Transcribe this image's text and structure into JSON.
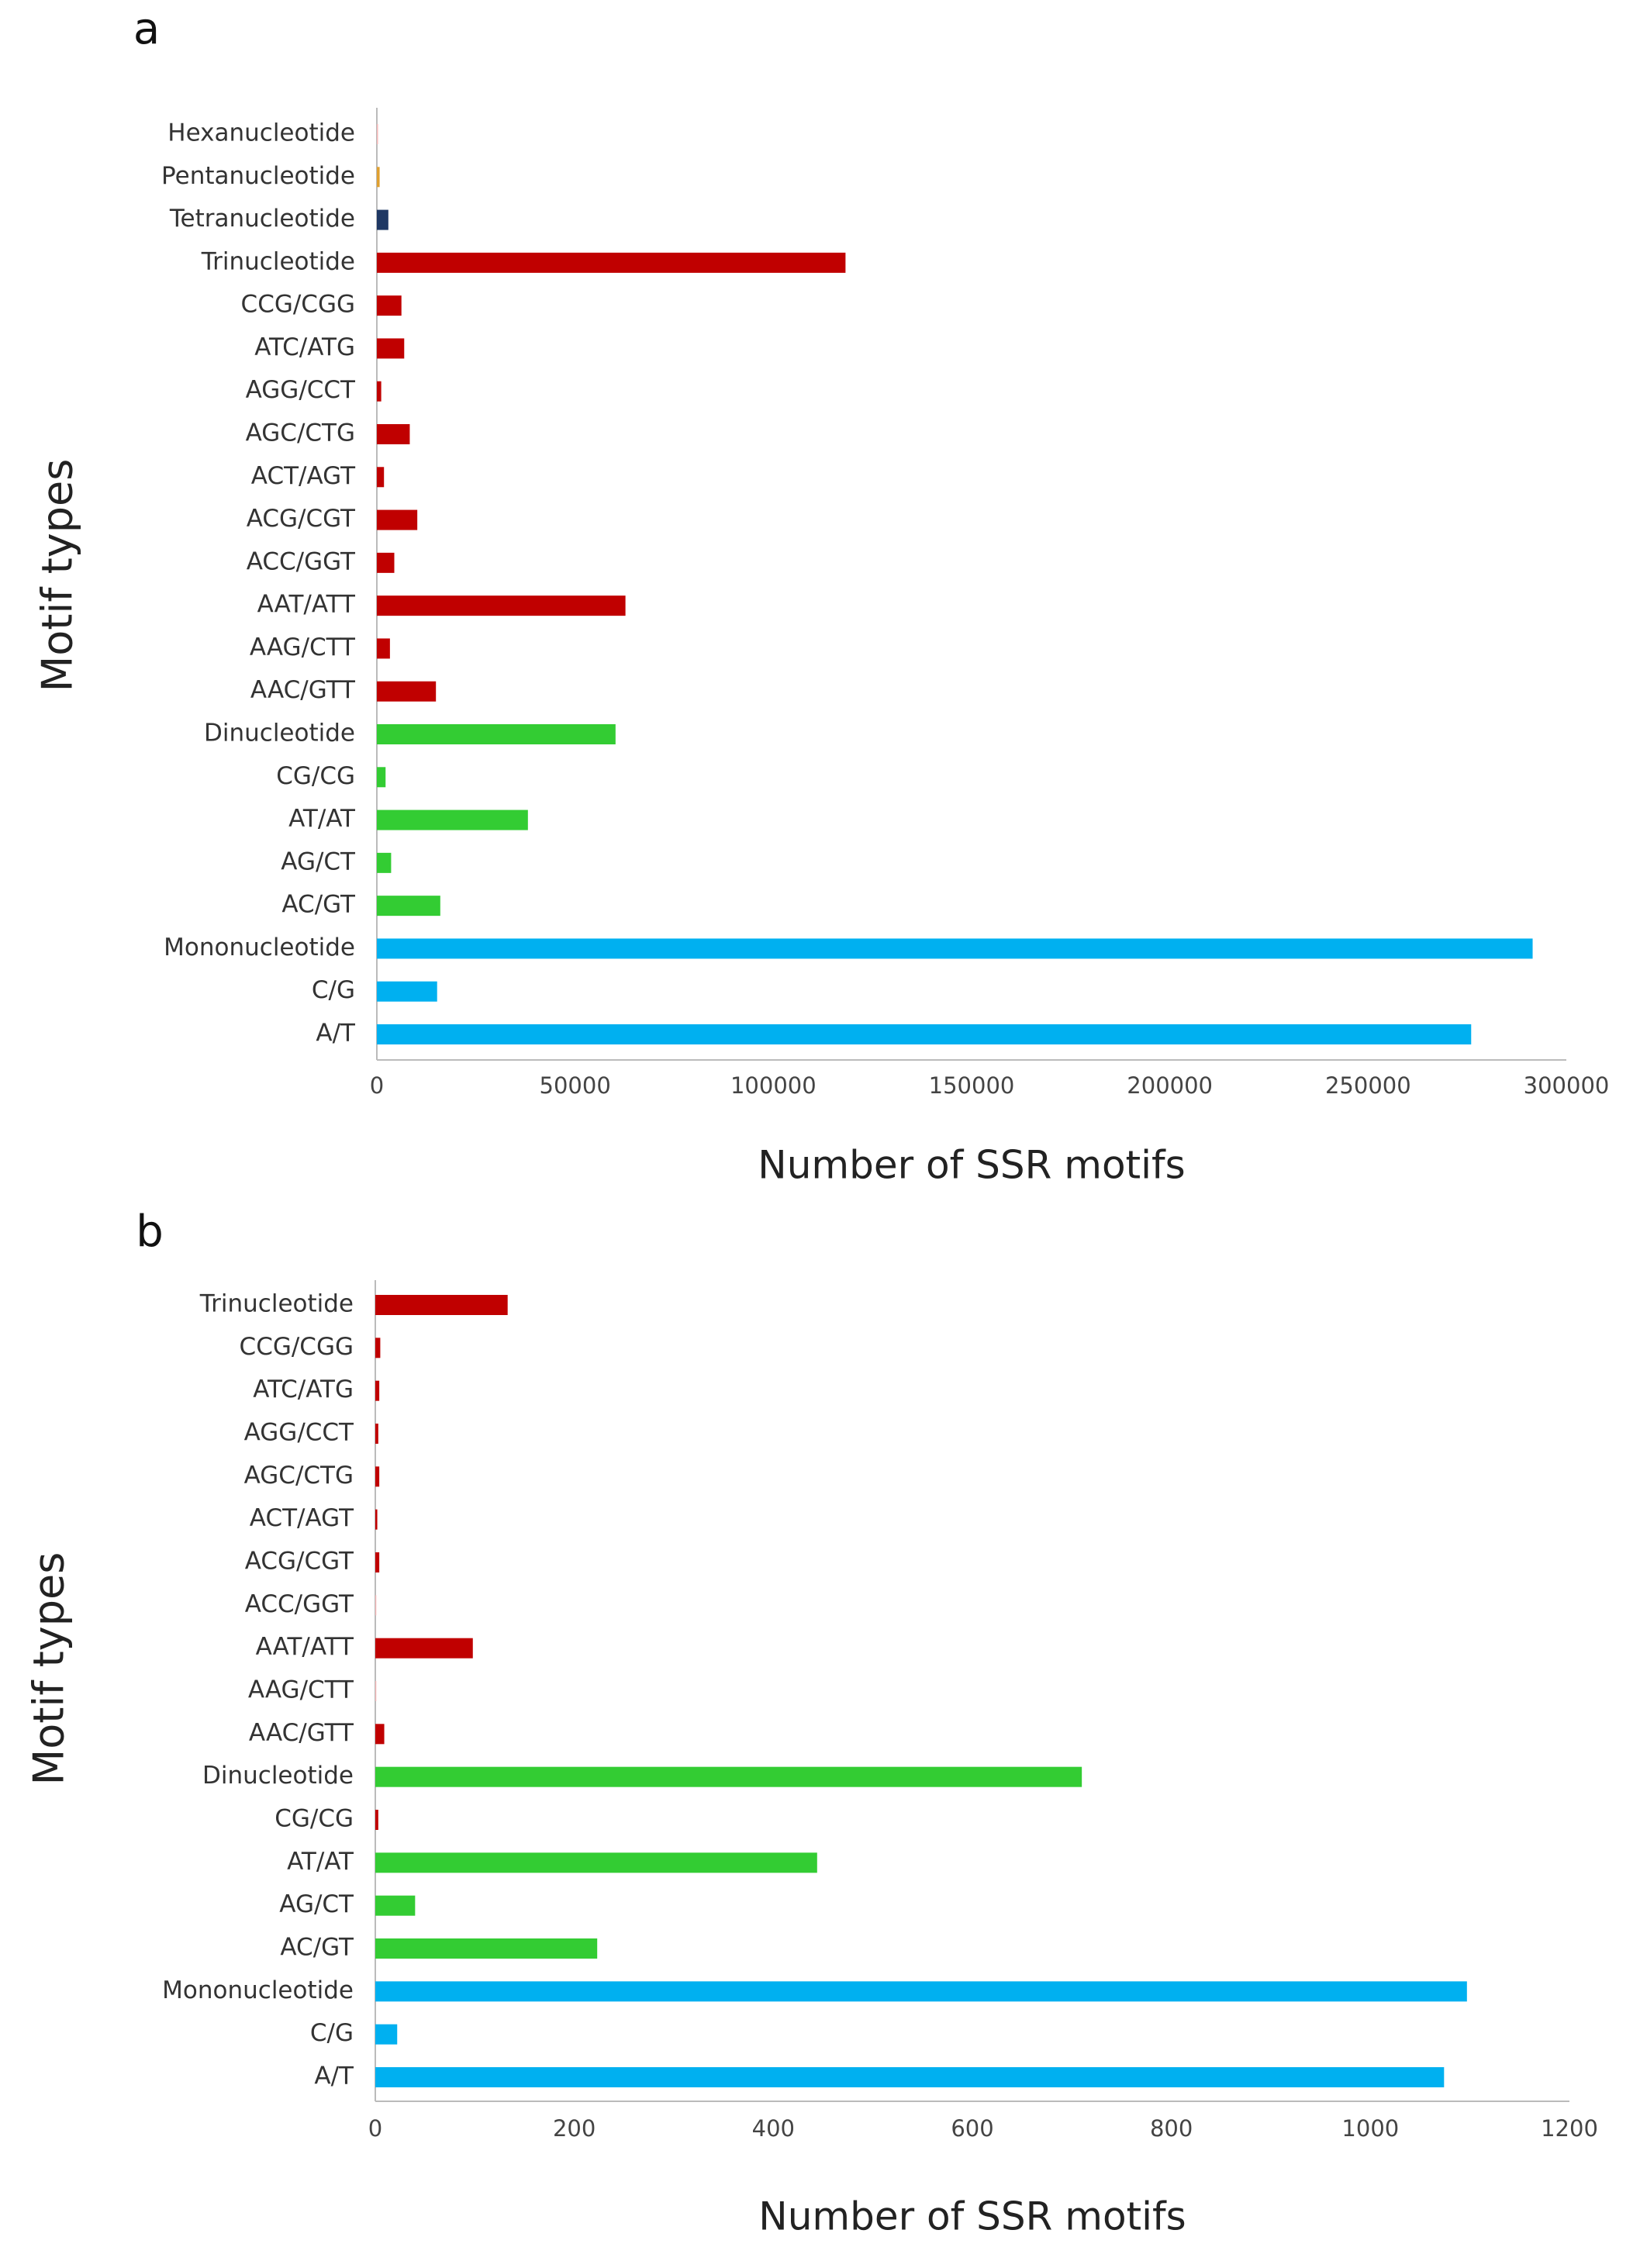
{
  "chart_data": [
    {
      "type": "bar",
      "orientation": "horizontal",
      "panel_label": "a",
      "xlabel": "Number of SSR motifs",
      "ylabel": "Motif types",
      "categories": [
        "A/T",
        "C/G",
        "Mononucleotide",
        "AC/GT",
        "AG/CT",
        "AT/AT",
        "CG/CG",
        "Dinucleotide",
        "AAC/GTT",
        "AAG/CTT",
        "AAT/ATT",
        "ACC/GGT",
        "ACG/CGT",
        "ACT/AGT",
        "AGC/CTG",
        "AGG/CCT",
        "ATC/ATG",
        "CCG/CGG",
        "Trinucleotide",
        "Tetranucleotide",
        "Pentanucleotide",
        "Hexanucleotide"
      ],
      "values": [
        276000,
        15200,
        291500,
        16000,
        3600,
        38100,
        2200,
        60200,
        14900,
        3300,
        62700,
        4400,
        10200,
        1800,
        8300,
        1100,
        6900,
        6200,
        118200,
        2900,
        700,
        300
      ],
      "colors": [
        "#00b0f0",
        "#00b0f0",
        "#00b0f0",
        "#33cc33",
        "#33cc33",
        "#33cc33",
        "#33cc33",
        "#33cc33",
        "#c00000",
        "#c00000",
        "#c00000",
        "#c00000",
        "#c00000",
        "#c00000",
        "#c00000",
        "#c00000",
        "#c00000",
        "#c00000",
        "#c00000",
        "#1f3864",
        "#e0a030",
        "#f4b8b8"
      ],
      "xlim": [
        0,
        300000
      ],
      "xticks": [
        0,
        50000,
        100000,
        150000,
        200000,
        250000,
        300000
      ],
      "grid": false
    },
    {
      "type": "bar",
      "orientation": "horizontal",
      "panel_label": "b",
      "xlabel": "Number of SSR motifs",
      "ylabel": "Motif types",
      "categories": [
        "A/T",
        "C/G",
        "Mononucleotide",
        "AC/GT",
        "AG/CT",
        "AT/AT",
        "CG/CG",
        "Dinucleotide",
        "AAC/GTT",
        "AAG/CTT",
        "AAT/ATT",
        "ACC/GGT",
        "ACG/CGT",
        "ACT/AGT",
        "AGC/CTG",
        "AGG/CCT",
        "ATC/ATG",
        "CCG/CGG",
        "Trinucleotide"
      ],
      "values": [
        1074,
        22,
        1097,
        223,
        40,
        444,
        3,
        710,
        9,
        1,
        98,
        1,
        4,
        2,
        4,
        3,
        4,
        5,
        133
      ],
      "colors": [
        "#00b0f0",
        "#00b0f0",
        "#00b0f0",
        "#33cc33",
        "#33cc33",
        "#33cc33",
        "#c00000",
        "#33cc33",
        "#c00000",
        "#f4b8b8",
        "#c00000",
        "#f4b8b8",
        "#c00000",
        "#c00000",
        "#c00000",
        "#c00000",
        "#c00000",
        "#c00000",
        "#c00000"
      ],
      "xlim": [
        0,
        1200
      ],
      "xticks": [
        0,
        200,
        400,
        600,
        800,
        1000,
        1200
      ],
      "grid": false
    }
  ]
}
